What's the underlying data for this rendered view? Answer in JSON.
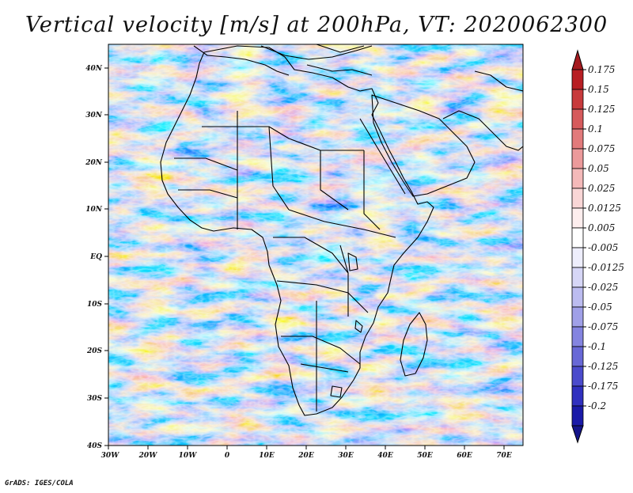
{
  "title": "Vertical velocity [m/s] at 200hPa, VT: 2020062300",
  "credit": "GrADS: IGES/COLA",
  "map": {
    "lon_ticks": [
      "30W",
      "20W",
      "10W",
      "0",
      "10E",
      "20E",
      "30E",
      "40E",
      "50E",
      "60E",
      "70E"
    ],
    "lat_ticks": [
      "40N",
      "30N",
      "20N",
      "10N",
      "EQ",
      "10S",
      "20S",
      "30S",
      "40S"
    ],
    "lon_range": [
      -30,
      75
    ],
    "lat_range": [
      -40,
      45
    ]
  },
  "colorbar": {
    "labels": [
      "0.175",
      "0.15",
      "0.125",
      "0.1",
      "0.075",
      "0.05",
      "0.025",
      "0.0125",
      "0.005",
      "-0.005",
      "-0.0125",
      "-0.025",
      "-0.05",
      "-0.075",
      "-0.1",
      "-0.125",
      "-0.175",
      "-0.2"
    ],
    "colors": [
      "#b81e23",
      "#c83a3c",
      "#d65a5c",
      "#e27a7b",
      "#ec9a9b",
      "#f4b9b9",
      "#f9d6d6",
      "#fdeeee",
      "#ffffff",
      "#eeeefc",
      "#d6d6f6",
      "#bcbcf0",
      "#a0a0e8",
      "#8484e0",
      "#6868d6",
      "#4b4bcc",
      "#3030bf",
      "#1a1aa8"
    ],
    "top_arrow_color": "#a51a1f",
    "bottom_arrow_color": "#14148a"
  }
}
